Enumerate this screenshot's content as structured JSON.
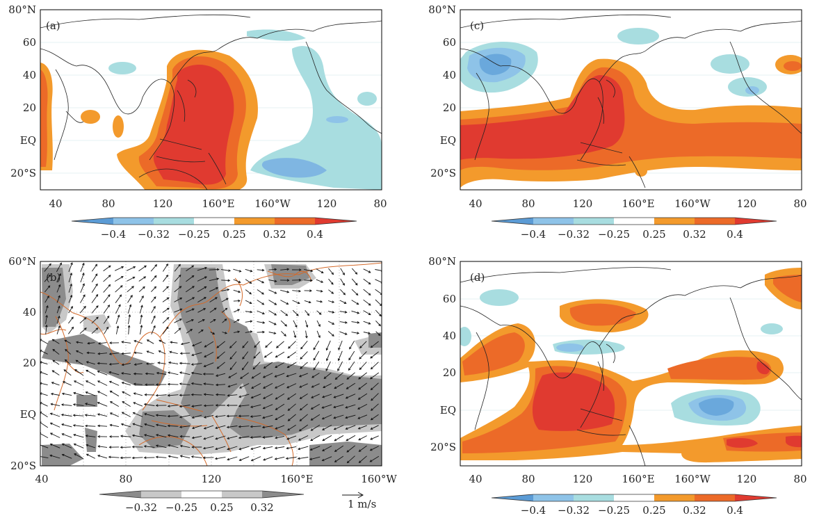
{
  "panels": [
    {
      "id": "a",
      "tag": "(a)",
      "lat_labels": [
        "80°N",
        "60",
        "40",
        "20",
        "EQ",
        "20°S"
      ],
      "lon_labels": [
        "40",
        "80",
        "120",
        "160°E",
        "160°W",
        "120",
        "80"
      ],
      "colorbar_labels": [
        "−0.4",
        "−0.32",
        "−0.25",
        "0.25",
        "0.32",
        "0.4"
      ]
    },
    {
      "id": "c",
      "tag": "(c)",
      "lat_labels": [
        "80°N",
        "60",
        "40",
        "20",
        "EQ",
        "20°S"
      ],
      "lon_labels": [
        "40",
        "80",
        "120",
        "160°E",
        "160°W",
        "120",
        "80"
      ],
      "colorbar_labels": [
        "−0.4",
        "−0.32",
        "−0.25",
        "0.25",
        "0.32",
        "0.4"
      ]
    },
    {
      "id": "b",
      "tag": "(b)",
      "lat_labels": [
        "60°N",
        "40",
        "20",
        "EQ",
        "20°S"
      ],
      "lon_labels": [
        "40",
        "80",
        "120",
        "160°E",
        "160°W"
      ],
      "colorbar_labels": [
        "−0.32",
        "−0.25",
        "0.25",
        "0.32"
      ],
      "vector_scale_label": "1 m/s"
    },
    {
      "id": "d",
      "tag": "(d)",
      "lat_labels": [
        "80°N",
        "60",
        "40",
        "20",
        "EQ",
        "20°S"
      ],
      "lon_labels": [
        "40",
        "80",
        "120",
        "160°E",
        "160°W",
        "120",
        "80"
      ],
      "colorbar_labels": [
        "−0.4",
        "−0.32",
        "−0.25",
        "0.25",
        "0.32",
        "0.4"
      ]
    }
  ],
  "colors": {
    "neg_strong": "#5b9bd5",
    "neg_mid": "#8ec3e8",
    "neg_weak": "#a8dde0",
    "pos_weak": "#f39a2c",
    "pos_mid": "#ec6a28",
    "pos_strong": "#e03a30",
    "gray_strong": "#8c8c8c",
    "gray_weak": "#c8c8c8"
  }
}
